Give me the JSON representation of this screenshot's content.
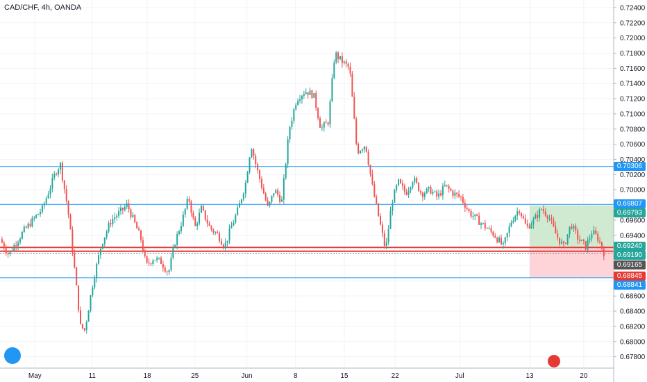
{
  "header": {
    "symbol": "CAD/CHF, 4h, OANDA"
  },
  "colors": {
    "up": "#26a69a",
    "down": "#ef5350",
    "hline": "#2196f3",
    "level": "#e53935",
    "profit_zone": "#c8e6c9",
    "loss_zone": "#ffcdd2"
  },
  "y_axis": {
    "ticks": [
      "0.72400",
      "0.72200",
      "0.72000",
      "0.71800",
      "0.71600",
      "0.71400",
      "0.71200",
      "0.71000",
      "0.70800",
      "0.70600",
      "0.70400",
      "0.70200",
      "0.70000",
      "0.69800",
      "0.69600",
      "0.69400",
      "0.69200",
      "0.69000",
      "0.68800",
      "0.68600",
      "0.68400",
      "0.68200",
      "0.68000",
      "0.67800"
    ]
  },
  "x_axis": {
    "labels": [
      "May",
      "11",
      "18",
      "25",
      "Jun",
      "8",
      "15",
      "22",
      "Jul",
      "13",
      "20"
    ]
  },
  "price_tags": {
    "hline_top": "0.70306",
    "hline_mid": "0.69807",
    "target": "0.69793",
    "entry": "0.69240",
    "level_low": "0.69190",
    "current": "0.69165",
    "stop": "0.68845",
    "hline_low": "0.68841"
  },
  "chart_data": {
    "type": "candlestick",
    "title": "CAD/CHF, 4h, OANDA",
    "xlabel": "",
    "ylabel": "",
    "ylim": [
      0.6765,
      0.725
    ],
    "x_labels": [
      "May",
      "11",
      "18",
      "25",
      "Jun",
      "8",
      "15",
      "22",
      "Jul",
      "13",
      "20"
    ],
    "horizontal_lines": [
      0.70306,
      0.69807,
      0.6924,
      0.6919,
      0.68841
    ],
    "position": {
      "entry": 0.6924,
      "target": 0.69793,
      "stop": 0.68845
    },
    "current_price": 0.69165,
    "close_path": [
      [
        0,
        0.6935
      ],
      [
        0.8,
        0.6915
      ],
      [
        2.2,
        0.6945
      ],
      [
        4.0,
        0.6975
      ],
      [
        5.3,
        0.7025
      ],
      [
        5.7,
        0.7033
      ],
      [
        6.4,
        0.6975
      ],
      [
        7.0,
        0.69
      ],
      [
        7.6,
        0.682
      ],
      [
        8.0,
        0.6815
      ],
      [
        8.8,
        0.688
      ],
      [
        9.6,
        0.693
      ],
      [
        10.5,
        0.696
      ],
      [
        11.3,
        0.697
      ],
      [
        12.0,
        0.698
      ],
      [
        12.6,
        0.696
      ],
      [
        13.3,
        0.6935
      ],
      [
        13.8,
        0.69
      ],
      [
        14.5,
        0.691
      ],
      [
        15.2,
        0.6905
      ],
      [
        15.9,
        0.689
      ],
      [
        16.5,
        0.693
      ],
      [
        17.2,
        0.696
      ],
      [
        17.8,
        0.699
      ],
      [
        18.4,
        0.695
      ],
      [
        19.0,
        0.6975
      ],
      [
        19.8,
        0.695
      ],
      [
        20.6,
        0.694
      ],
      [
        21.2,
        0.6925
      ],
      [
        21.8,
        0.695
      ],
      [
        22.5,
        0.6975
      ],
      [
        23.2,
        0.701
      ],
      [
        23.7,
        0.706
      ],
      [
        24.2,
        0.703
      ],
      [
        24.8,
        0.7
      ],
      [
        25.3,
        0.6975
      ],
      [
        25.9,
        0.7
      ],
      [
        26.6,
        0.6985
      ],
      [
        27.3,
        0.708
      ],
      [
        28.0,
        0.712
      ],
      [
        28.8,
        0.713
      ],
      [
        29.6,
        0.7125
      ],
      [
        30.3,
        0.708
      ],
      [
        31.0,
        0.709
      ],
      [
        31.6,
        0.718
      ],
      [
        32.2,
        0.717
      ],
      [
        33.0,
        0.716
      ],
      [
        33.7,
        0.705
      ],
      [
        34.5,
        0.706
      ],
      [
        35.2,
        0.7
      ],
      [
        35.8,
        0.696
      ],
      [
        36.4,
        0.692
      ],
      [
        37.0,
        0.6985
      ],
      [
        37.6,
        0.701
      ],
      [
        38.3,
        0.6995
      ],
      [
        39.0,
        0.7015
      ],
      [
        39.8,
        0.6995
      ],
      [
        40.6,
        0.7
      ],
      [
        41.3,
        0.699
      ],
      [
        42.0,
        0.7005
      ],
      [
        42.8,
        0.6995
      ],
      [
        43.5,
        0.699
      ],
      [
        44.3,
        0.697
      ],
      [
        45.1,
        0.696
      ],
      [
        45.9,
        0.695
      ],
      [
        46.7,
        0.694
      ],
      [
        47.5,
        0.6925
      ],
      [
        48.3,
        0.696
      ],
      [
        49.0,
        0.6975
      ],
      [
        49.7,
        0.695
      ],
      [
        50.4,
        0.696
      ],
      [
        51.1,
        0.6975
      ],
      [
        51.8,
        0.6965
      ],
      [
        52.5,
        0.694
      ],
      [
        53.2,
        0.6925
      ],
      [
        53.9,
        0.6955
      ],
      [
        54.6,
        0.6935
      ],
      [
        55.3,
        0.6925
      ],
      [
        55.9,
        0.6945
      ],
      [
        56.5,
        0.6935
      ],
      [
        57.0,
        0.6917
      ]
    ]
  }
}
